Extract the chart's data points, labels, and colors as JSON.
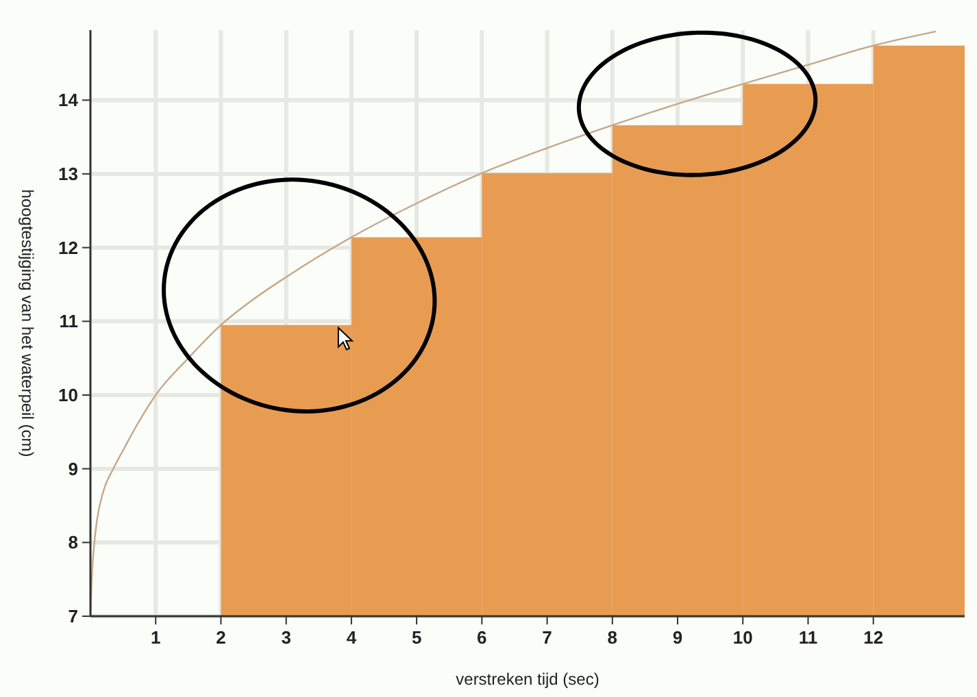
{
  "chart_data": {
    "type": "histogram",
    "xlabel": "verstreken tijd (sec)",
    "ylabel": "hoogtestijging van het waterpeil (cm)",
    "bins": [
      2,
      4,
      6,
      8,
      10,
      12,
      13.4
    ],
    "values": [
      10.95,
      12.14,
      13.01,
      13.66,
      14.22,
      14.74
    ],
    "color": "#e89c52",
    "series": [
      {
        "type": "line",
        "color": "#c4a88c",
        "x": [
          0,
          0.02,
          0.05,
          0.1,
          0.2,
          0.35,
          0.5,
          0.75,
          1,
          1.5,
          2,
          2.5,
          3,
          4,
          5,
          6,
          7,
          8,
          9,
          10,
          11,
          12,
          12.95
        ],
        "values": [
          7,
          7.5,
          7.9,
          8.3,
          8.7,
          9.0,
          9.25,
          9.65,
          10,
          10.5,
          10.95,
          11.3,
          11.6,
          12.14,
          12.6,
          13.01,
          13.35,
          13.66,
          13.95,
          14.22,
          14.48,
          14.74,
          14.93
        ]
      }
    ],
    "xlim": [
      0,
      13.4
    ],
    "ylim": [
      7,
      14.95
    ],
    "xticks": [
      1,
      2,
      3,
      4,
      5,
      6,
      7,
      8,
      9,
      10,
      11,
      12
    ],
    "yticks": [
      7,
      8,
      9,
      10,
      11,
      12,
      13,
      14
    ],
    "grid": true
  }
}
